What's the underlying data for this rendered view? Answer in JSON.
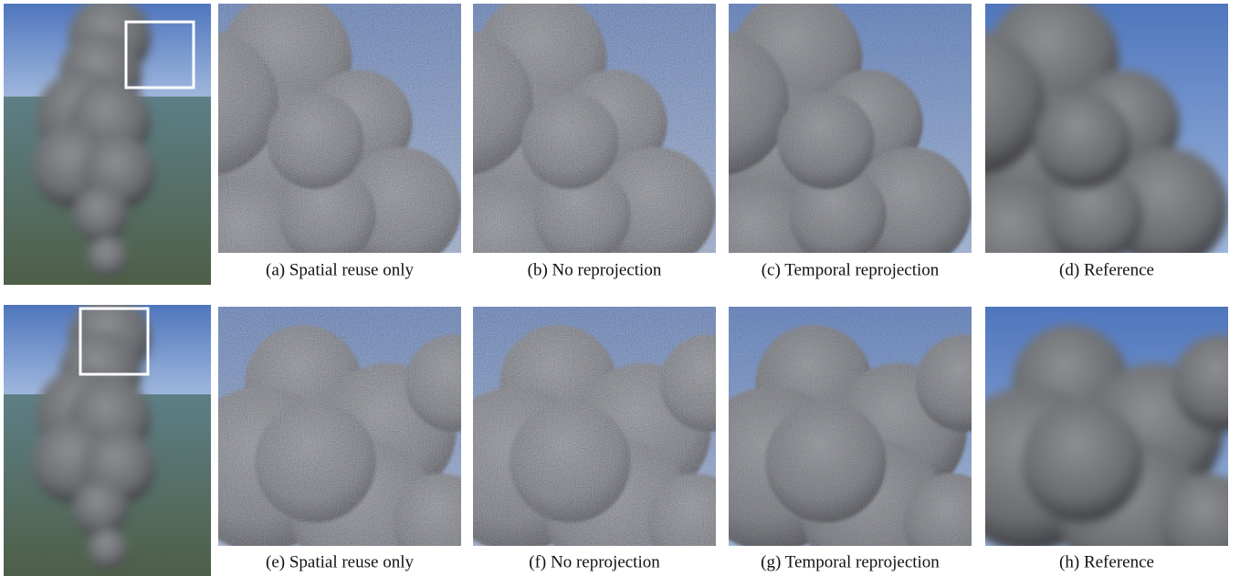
{
  "figure": {
    "rows": [
      {
        "captions": [
          "(a) Spatial reuse only",
          "(b) No reprojection",
          "(c) Temporal reprojection",
          "(d) Reference"
        ]
      },
      {
        "captions": [
          "(e) Spatial reuse only",
          "(f) No reprojection",
          "(g) Temporal reprojection",
          "(h) Reference"
        ]
      }
    ]
  }
}
